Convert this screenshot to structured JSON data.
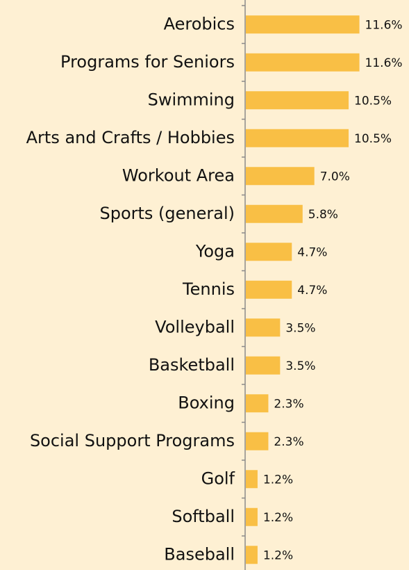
{
  "chart_data": {
    "type": "bar",
    "orientation": "horizontal",
    "color": "#f9bf45",
    "categories": [
      "Aerobics",
      "Programs for Seniors",
      "Swimming",
      "Arts and Crafts / Hobbies",
      "Workout Area",
      "Sports (general)",
      "Yoga",
      "Tennis",
      "Volleyball",
      "Basketball",
      "Boxing",
      "Social Support Programs",
      "Golf",
      "Softball",
      "Baseball"
    ],
    "values": [
      11.6,
      11.6,
      10.5,
      10.5,
      7.0,
      5.8,
      4.7,
      4.7,
      3.5,
      3.5,
      2.3,
      2.3,
      1.2,
      1.2,
      1.2
    ],
    "value_labels": [
      "11.6%",
      "11.6%",
      "10.5%",
      "10.5%",
      "7.0%",
      "5.8%",
      "4.7%",
      "4.7%",
      "3.5%",
      "3.5%",
      "2.3%",
      "2.3%",
      "1.2%",
      "1.2%",
      "1.2%"
    ]
  }
}
